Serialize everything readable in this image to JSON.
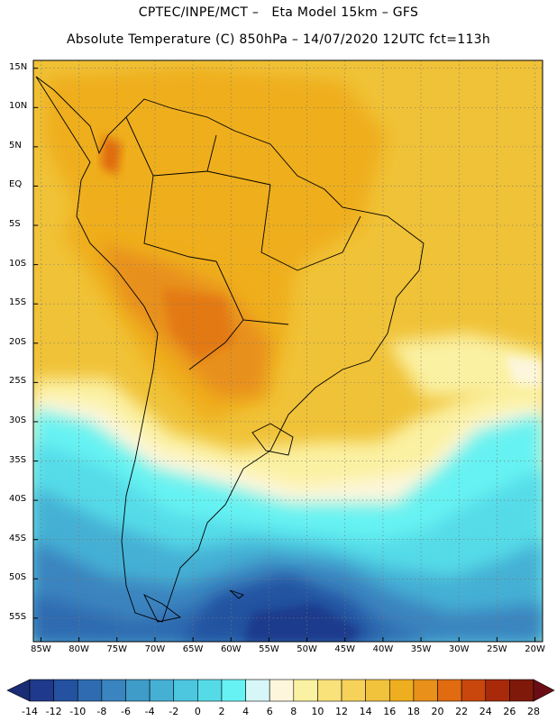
{
  "header": {
    "line1": "CPTEC/INPE/MCT –   Eta Model 15km – GFS",
    "line2": "Absolute Temperature (C) 850hPa – 14/07/2020 12UTC fct=113h"
  },
  "axes": {
    "lat_labels": [
      "15N",
      "10N",
      "5N",
      "EQ",
      "5S",
      "10S",
      "15S",
      "20S",
      "25S",
      "30S",
      "35S",
      "40S",
      "45S",
      "50S",
      "55S"
    ],
    "lat_values": [
      15,
      10,
      5,
      0,
      -5,
      -10,
      -15,
      -20,
      -25,
      -30,
      -35,
      -40,
      -45,
      -50,
      -55
    ],
    "lon_labels": [
      "85W",
      "80W",
      "75W",
      "70W",
      "65W",
      "60W",
      "55W",
      "50W",
      "45W",
      "40W",
      "35W",
      "30W",
      "25W",
      "20W"
    ],
    "lon_values": [
      -85,
      -80,
      -75,
      -70,
      -65,
      -60,
      -55,
      -50,
      -45,
      -40,
      -35,
      -30,
      -25,
      -20
    ]
  },
  "colorbar": {
    "labels": [
      "-14",
      "-12",
      "-10",
      "-8",
      "-6",
      "-4",
      "-2",
      "0",
      "2",
      "4",
      "6",
      "8",
      "10",
      "12",
      "14",
      "16",
      "18",
      "20",
      "22",
      "24",
      "26",
      "28"
    ],
    "colors": [
      "#1f3a8c",
      "#2452a0",
      "#2e6bb0",
      "#3a84bf",
      "#3f9bc8",
      "#45b0d4",
      "#4dc6df",
      "#55dbe8",
      "#66f2f2",
      "#d6f6f8",
      "#fdf6dc",
      "#fbf1a2",
      "#f9e27a",
      "#f7d25a",
      "#f1c23c",
      "#efae1f",
      "#e8901a",
      "#e06b11",
      "#c9470c",
      "#a82a0b",
      "#7f1a0a"
    ],
    "under_color": "#1a2c75",
    "over_color": "#6b0d14"
  },
  "map": {
    "extent": {
      "lon_min": -86,
      "lon_max": -19,
      "lat_min": -58,
      "lat_max": 16
    }
  }
}
